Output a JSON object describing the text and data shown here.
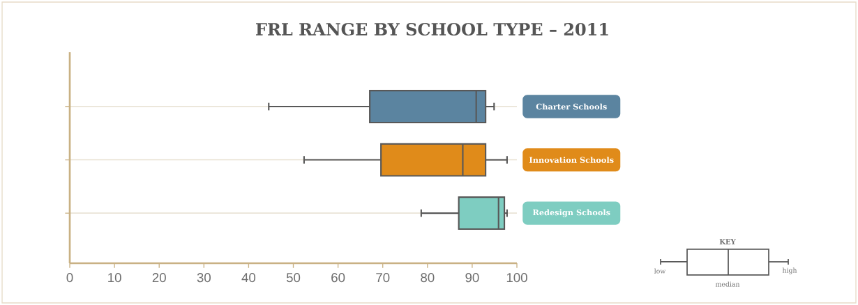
{
  "chart_data": {
    "type": "box",
    "orientation": "horizontal",
    "title": "FRL RANGE BY SCHOOL TYPE – 2011",
    "categories": [
      "Charter Schools",
      "Innovation Schools",
      "Redesign Schools"
    ],
    "colors": [
      "#5b84a0",
      "#e08b1a",
      "#7ecdc1"
    ],
    "boxes": [
      {
        "low": 44.5,
        "q1": 67.1,
        "median": 90.9,
        "q3": 93.0,
        "high": 94.9
      },
      {
        "low": 52.4,
        "q1": 69.6,
        "median": 87.9,
        "q3": 93.0,
        "high": 97.8
      },
      {
        "low": 78.6,
        "q1": 87.0,
        "median": 95.9,
        "q3": 97.2,
        "high": 97.8
      }
    ],
    "xlim": [
      0,
      100
    ],
    "xticks": [
      0,
      10,
      20,
      30,
      40,
      50,
      60,
      70,
      80,
      90,
      100
    ],
    "grid": "y",
    "annotations": [
      "KEY",
      "low",
      "median",
      "high"
    ]
  }
}
